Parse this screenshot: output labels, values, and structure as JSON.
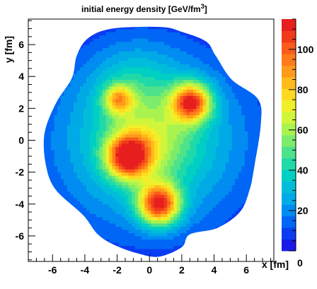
{
  "chart_data": {
    "type": "heatmap",
    "title_main": "initial energy density [GeV/fm",
    "title_sup": "3",
    "title_end": "]",
    "xlabel": "x [fm]",
    "ylabel": "y [fm]",
    "xlim": [
      -7.5,
      7.7
    ],
    "ylim": [
      -7.6,
      7.6
    ],
    "x_ticks": [
      -6,
      -4,
      -2,
      0,
      2,
      4,
      6
    ],
    "y_ticks": [
      -6,
      -4,
      -2,
      0,
      2,
      4,
      6
    ],
    "zlim": [
      0,
      115
    ],
    "z_ticks": [
      0,
      20,
      40,
      60,
      80,
      100
    ],
    "contour_step": 5.75,
    "palette": [
      "#1a1ae6",
      "#0a3cf2",
      "#0066f5",
      "#008cf0",
      "#00aae6",
      "#00bdd9",
      "#00cfc4",
      "#20d9a8",
      "#4ee38a",
      "#7cec6a",
      "#a8f34f",
      "#d0f53a",
      "#f0f02a",
      "#ffd91f",
      "#ffbb1a",
      "#ff9a1a",
      "#ff7a1a",
      "#fa5a1a",
      "#f03a1a",
      "#e61e1e"
    ],
    "hotspots": [
      {
        "x": -1.3,
        "y": -1.0,
        "peak": 85,
        "sigma": 0.95
      },
      {
        "x": 0.6,
        "y": -4.0,
        "peak": 88,
        "sigma": 0.9
      },
      {
        "x": 2.6,
        "y": 2.4,
        "peak": 82,
        "sigma": 0.85
      },
      {
        "x": -1.9,
        "y": 2.6,
        "peak": 48,
        "sigma": 0.65
      },
      {
        "x": 0.3,
        "y": 0.0,
        "peak": 20,
        "sigma": 1.6
      },
      {
        "x": -1.0,
        "y": 3.5,
        "peak": 14,
        "sigma": 1.8
      }
    ],
    "background": {
      "peak": 44,
      "sigma_x": 4.4,
      "sigma_y": 4.1
    },
    "boundary": [
      [
        -2.3,
        7.0
      ],
      [
        0.7,
        7.1
      ],
      [
        2.0,
        6.8
      ],
      [
        3.5,
        6.2
      ],
      [
        4.1,
        5.3
      ],
      [
        5.1,
        3.8
      ],
      [
        6.7,
        2.6
      ],
      [
        6.9,
        1.1
      ],
      [
        6.5,
        -1.6
      ],
      [
        6.2,
        -3.1
      ],
      [
        5.6,
        -4.5
      ],
      [
        4.2,
        -5.5
      ],
      [
        2.5,
        -5.9
      ],
      [
        2.0,
        -6.7
      ],
      [
        0.6,
        -7.3
      ],
      [
        -0.7,
        -7.1
      ],
      [
        -2.1,
        -6.6
      ],
      [
        -3.2,
        -5.9
      ],
      [
        -4.1,
        -4.7
      ],
      [
        -5.8,
        -3.1
      ],
      [
        -6.4,
        -1.6
      ],
      [
        -6.5,
        0.4
      ],
      [
        -5.8,
        2.3
      ],
      [
        -4.8,
        3.9
      ],
      [
        -4.5,
        5.3
      ],
      [
        -3.8,
        6.4
      ]
    ]
  }
}
